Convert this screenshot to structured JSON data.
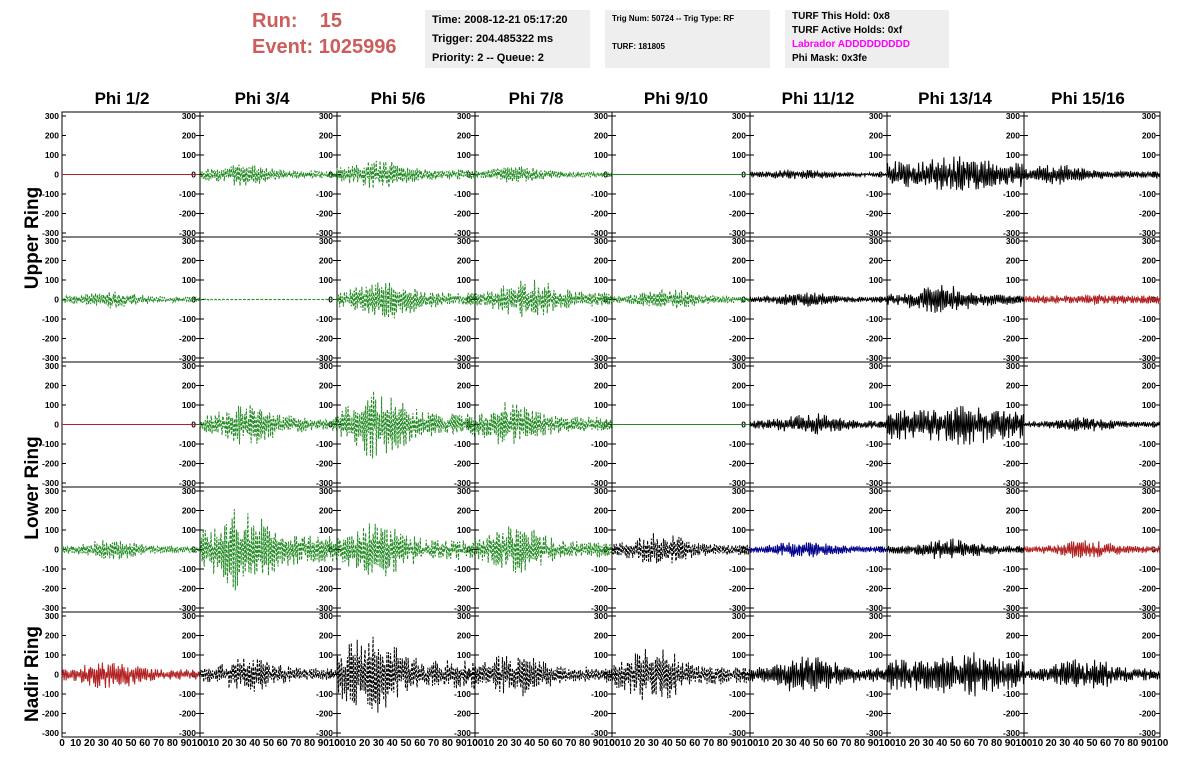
{
  "header": {
    "run_label": "Run:",
    "run_value": "15",
    "event_label": "Event:",
    "event_value": "1025996",
    "time": "Time: 2008-12-21 05:17:20",
    "trigger": "Trigger: 204.485322 ms",
    "priority": "Priority: 2 -- Queue: 2",
    "trig_num": "Trig Num: 50724 -- Trig Type: RF",
    "turf": "TURF: 181805",
    "turf_hold": "TURF This Hold: 0x8",
    "turf_active": "TURF Active Holds: 0xf",
    "labrador": "Labrador ADDDDDDDDD",
    "phi_mask": "Phi Mask: 0x3fe"
  },
  "colors": {
    "run_text": "#cd5c5c",
    "info_bg": "#eeeeee",
    "labrador_text": "#ff00ff",
    "trace_red": "#b22222",
    "trace_green": "#228b22",
    "trace_black": "#000000",
    "trace_blue": "#00008b"
  },
  "chart_data": {
    "type": "line",
    "columns": [
      "Phi 1/2",
      "Phi 3/4",
      "Phi 5/6",
      "Phi 7/8",
      "Phi 9/10",
      "Phi 11/12",
      "Phi 13/14",
      "Phi 15/16"
    ],
    "rows": [
      "Upper Ring",
      "Upper Ring",
      "Lower Ring",
      "Lower Ring",
      "Nadir Ring"
    ],
    "row_labels": [
      "Upper Ring",
      "Lower Ring",
      "Nadir Ring"
    ],
    "ylim": [
      -300,
      300
    ],
    "yticks": [
      -300,
      -200,
      -100,
      0,
      100,
      200,
      300
    ],
    "xlim": [
      0,
      100
    ],
    "xticks": [
      0,
      10,
      20,
      30,
      40,
      50,
      60,
      70,
      80,
      90,
      100
    ],
    "panels": [
      [
        {
          "color": "red",
          "style": "solid",
          "amp": 0,
          "peak": 0
        },
        {
          "color": "green",
          "style": "dashed",
          "amp": 60,
          "peak": 30
        },
        {
          "color": "green",
          "style": "dashed",
          "amp": 80,
          "peak": 30
        },
        {
          "color": "green",
          "style": "dashed",
          "amp": 45,
          "peak": 30
        },
        {
          "color": "green",
          "style": "solid",
          "amp": 0,
          "peak": 0
        },
        {
          "color": "black",
          "style": "solid",
          "amp": 30,
          "peak": 35
        },
        {
          "color": "black",
          "style": "solid",
          "amp": 100,
          "peak": 50
        },
        {
          "color": "black",
          "style": "solid",
          "amp": 55,
          "peak": 25
        }
      ],
      [
        {
          "color": "green",
          "style": "dashed",
          "amp": 45,
          "peak": 35
        },
        {
          "color": "green",
          "style": "dashed",
          "amp": 3,
          "peak": 0
        },
        {
          "color": "green",
          "style": "dashed",
          "amp": 110,
          "peak": 35
        },
        {
          "color": "green",
          "style": "dashed",
          "amp": 110,
          "peak": 40
        },
        {
          "color": "green",
          "style": "dashed",
          "amp": 55,
          "peak": 40
        },
        {
          "color": "black",
          "style": "solid",
          "amp": 40,
          "peak": 40
        },
        {
          "color": "black",
          "style": "solid",
          "amp": 80,
          "peak": 40
        },
        {
          "color": "red",
          "style": "solid",
          "amp": 30,
          "peak": 50
        }
      ],
      [
        {
          "color": "red",
          "style": "solid",
          "amp": 0,
          "peak": 0
        },
        {
          "color": "green",
          "style": "dashed",
          "amp": 110,
          "peak": 35
        },
        {
          "color": "green",
          "style": "dashed",
          "amp": 180,
          "peak": 30
        },
        {
          "color": "green",
          "style": "dashed",
          "amp": 120,
          "peak": 25
        },
        {
          "color": "green",
          "style": "solid",
          "amp": 0,
          "peak": 0
        },
        {
          "color": "black",
          "style": "solid",
          "amp": 60,
          "peak": 45
        },
        {
          "color": "black",
          "style": "solid",
          "amp": 110,
          "peak": 55
        },
        {
          "color": "black",
          "style": "solid",
          "amp": 40,
          "peak": 45
        }
      ],
      [
        {
          "color": "green",
          "style": "dashed",
          "amp": 55,
          "peak": 35
        },
        {
          "color": "green",
          "style": "dashed",
          "amp": 220,
          "peak": 30
        },
        {
          "color": "green",
          "style": "dashed",
          "amp": 150,
          "peak": 30
        },
        {
          "color": "green",
          "style": "dashed",
          "amp": 130,
          "peak": 30
        },
        {
          "color": "black",
          "style": "dashed",
          "amp": 90,
          "peak": 35
        },
        {
          "color": "blue",
          "style": "solid",
          "amp": 50,
          "peak": 40
        },
        {
          "color": "black",
          "style": "solid",
          "amp": 60,
          "peak": 45
        },
        {
          "color": "red",
          "style": "solid",
          "amp": 50,
          "peak": 45
        }
      ],
      [
        {
          "color": "red",
          "style": "solid",
          "amp": 80,
          "peak": 35
        },
        {
          "color": "black",
          "style": "dashed",
          "amp": 100,
          "peak": 35
        },
        {
          "color": "black",
          "style": "dashed",
          "amp": 230,
          "peak": 25
        },
        {
          "color": "black",
          "style": "dashed",
          "amp": 120,
          "peak": 30
        },
        {
          "color": "black",
          "style": "dashed",
          "amp": 150,
          "peak": 30
        },
        {
          "color": "black",
          "style": "solid",
          "amp": 110,
          "peak": 40
        },
        {
          "color": "black",
          "style": "solid",
          "amp": 120,
          "peak": 55
        },
        {
          "color": "black",
          "style": "solid",
          "amp": 90,
          "peak": 45
        }
      ]
    ]
  }
}
